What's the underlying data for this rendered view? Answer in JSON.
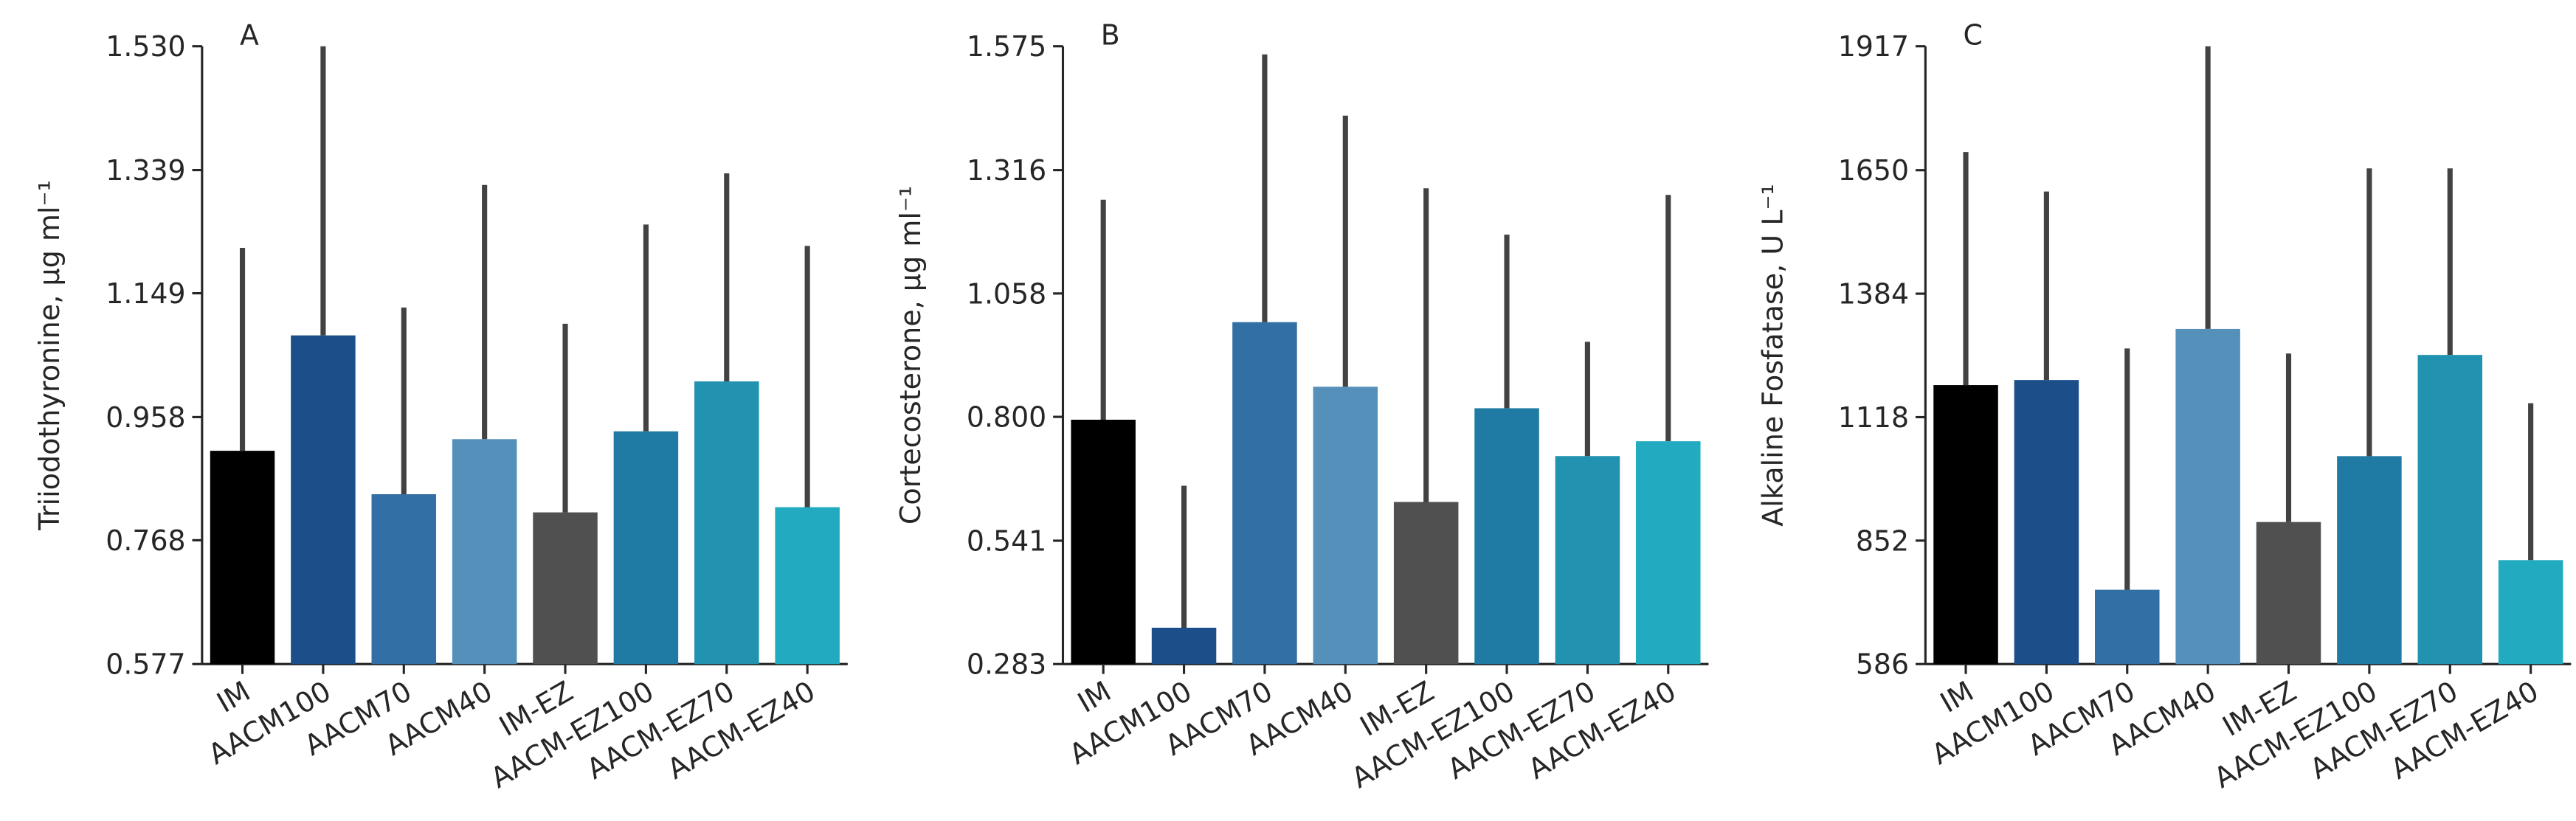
{
  "chart_data": [
    {
      "type": "bar",
      "title": "A",
      "y_label": "Triiodothyronine, µg ml⁻¹",
      "categories": [
        "IM",
        "AACM100",
        "AACM70",
        "AACM40",
        "IM-EZ",
        "AACM-EZ100",
        "AACM-EZ70",
        "AACM-EZ40"
      ],
      "values": [
        0.906,
        1.084,
        0.839,
        0.924,
        0.811,
        0.936,
        1.013,
        0.819
      ],
      "errors": [
        0.313,
        0.446,
        0.288,
        0.392,
        0.291,
        0.319,
        0.321,
        0.403
      ],
      "colors": [
        "#000000",
        "#1c4f8a",
        "#326fa4",
        "#5590bb",
        "#505050",
        "#1f7ba3",
        "#2192b0",
        "#22abc0"
      ],
      "error_color": "#424242",
      "ylim": [
        0.577,
        1.53
      ],
      "yticks": [
        0.577,
        0.768,
        0.958,
        1.149,
        1.339,
        {
          "value": 1.53,
          "label": "1.530"
        }
      ]
    },
    {
      "type": "bar",
      "title": "B",
      "y_label": "Cortecosterone, µg ml⁻¹",
      "categories": [
        "IM",
        "AACM100",
        "AACM70",
        "AACM40",
        "IM-EZ",
        "AACM-EZ100",
        "AACM-EZ70",
        "AACM-EZ40"
      ],
      "values": [
        0.794,
        0.359,
        0.998,
        0.863,
        0.622,
        0.818,
        0.718,
        0.749
      ],
      "errors": [
        0.46,
        0.297,
        0.56,
        0.567,
        0.656,
        0.363,
        0.239,
        0.515
      ],
      "colors": [
        "#000000",
        "#1c4f8a",
        "#326fa4",
        "#5590bb",
        "#505050",
        "#1f7ba3",
        "#2192b0",
        "#22abc0"
      ],
      "error_color": "#424242",
      "ylim": [
        0.283,
        1.575
      ],
      "yticks": [
        0.283,
        0.541,
        {
          "value": 0.8,
          "label": "0.800"
        },
        1.058,
        1.316,
        1.575
      ]
    },
    {
      "type": "bar",
      "title": "C",
      "y_label": "Alkaline Fosfatase, U L⁻¹",
      "categories": [
        "IM",
        "AACM100",
        "AACM70",
        "AACM40",
        "IM-EZ",
        "AACM-EZ100",
        "AACM-EZ70",
        "AACM-EZ40"
      ],
      "values": [
        1187,
        1198,
        746,
        1308,
        892,
        1034,
        1252,
        810
      ],
      "errors": [
        502,
        406,
        520,
        609,
        363,
        620,
        402,
        338
      ],
      "colors": [
        "#000000",
        "#1c4f8a",
        "#326fa4",
        "#5590bb",
        "#505050",
        "#1f7ba3",
        "#2192b0",
        "#22abc0"
      ],
      "error_color": "#424242",
      "ylim": [
        586,
        1917
      ],
      "yticks": [
        586,
        852,
        1118,
        1384,
        1650,
        1917
      ]
    }
  ]
}
